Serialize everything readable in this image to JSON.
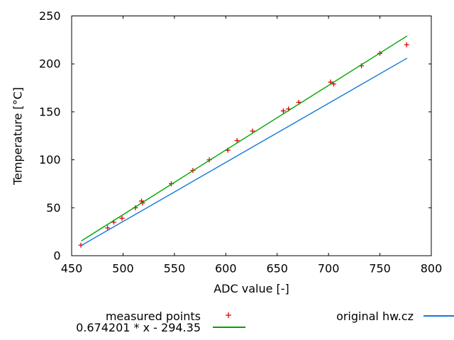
{
  "chart_data": {
    "type": "scatter",
    "title": "",
    "xlabel": "ADC value [-]",
    "ylabel": "Temperature [°C]",
    "xlim": [
      450,
      800
    ],
    "ylim": [
      0,
      250
    ],
    "x_ticks": [
      450,
      500,
      550,
      600,
      650,
      700,
      750,
      800
    ],
    "y_ticks": [
      0,
      50,
      100,
      150,
      200,
      250
    ],
    "grid": "off",
    "legend_position": "below-plot",
    "background_color": "#ffffff",
    "axis_color": "#000000",
    "series": [
      {
        "name": "measured points",
        "type": "points",
        "marker": "plus",
        "color": "#e60000",
        "points": [
          [
            459,
            11
          ],
          [
            485,
            29
          ],
          [
            491,
            35
          ],
          [
            499,
            39
          ],
          [
            512,
            50
          ],
          [
            518,
            57
          ],
          [
            519,
            55
          ],
          [
            547,
            75
          ],
          [
            568,
            89
          ],
          [
            584,
            100
          ],
          [
            602,
            110
          ],
          [
            611,
            120
          ],
          [
            626,
            130
          ],
          [
            656,
            151
          ],
          [
            661,
            153
          ],
          [
            671,
            160
          ],
          [
            702,
            181
          ],
          [
            705,
            179
          ],
          [
            732,
            198
          ],
          [
            750,
            211
          ],
          [
            776,
            220
          ]
        ]
      },
      {
        "name": "0.674201 * x - 294.35",
        "type": "line",
        "color": "#00a400",
        "slope": 0.674201,
        "intercept": -294.35,
        "x_range": [
          459.5,
          776.5
        ]
      },
      {
        "name": "original hw.cz",
        "type": "line",
        "color": "#1577dd",
        "slope": 0.6161,
        "intercept": -272.4,
        "x_range": [
          460,
          776.5
        ]
      }
    ]
  }
}
